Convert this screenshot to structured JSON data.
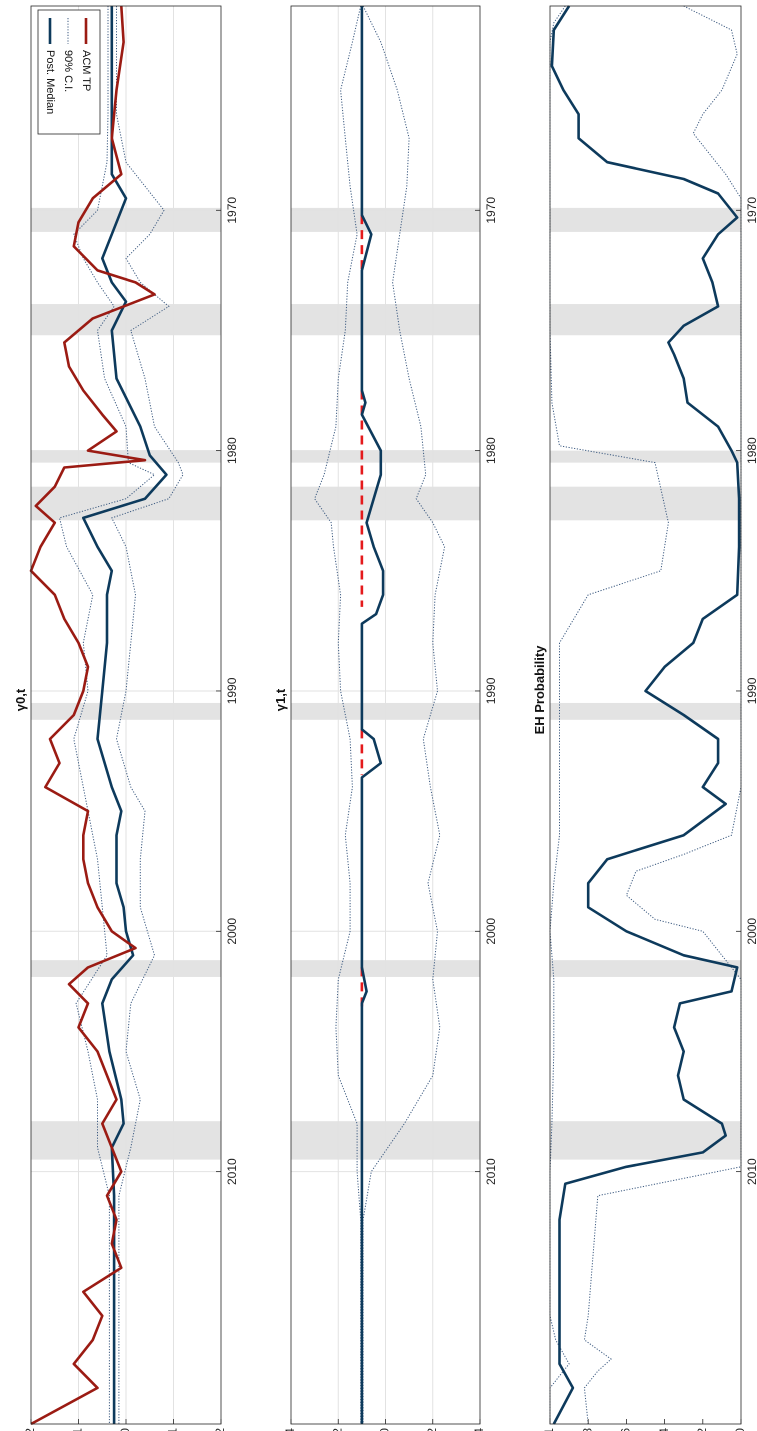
{
  "colors": {
    "median": "#0d3a5c",
    "ci": "#3c5a80",
    "acm": "#9b1b13",
    "red_dash": "#e41a1c",
    "recession": "#e3e3e3",
    "grid": "#e2e2e2",
    "axis": "#262626"
  },
  "chart_data": [
    {
      "type": "line",
      "title": "γ0,t",
      "xlim": [
        1961.5,
        2020.5
      ],
      "ylim": [
        -2,
        2
      ],
      "yticks": [
        "2",
        "1",
        "0",
        "-1",
        "-2"
      ],
      "xticks": [
        "1970",
        "1980",
        "1990",
        "2000",
        "2010"
      ],
      "grid": true,
      "legend": {
        "placement": "top-right",
        "entries": [
          "Post. Median",
          "90% C.I.",
          "ACM TP"
        ]
      },
      "recessions": [
        [
          1969.9,
          1970.9
        ],
        [
          1973.9,
          1975.2
        ],
        [
          1980.0,
          1980.5
        ],
        [
          1981.5,
          1982.9
        ],
        [
          1990.5,
          1991.2
        ],
        [
          2001.2,
          2001.9
        ],
        [
          2007.9,
          2009.5
        ]
      ],
      "series": [
        {
          "name": "Post. Median",
          "x": [
            1961.5,
            1966,
            1968.5,
            1969.5,
            1971,
            1972,
            1973,
            1973.8,
            1975,
            1977,
            1979,
            1980.2,
            1981,
            1982,
            1982.8,
            1984,
            1985,
            1986,
            1988,
            1990,
            1992,
            1994,
            1995,
            1996,
            1998,
            1999,
            2000,
            2001,
            2002,
            2003,
            2005,
            2007,
            2008,
            2009,
            2011,
            2014,
            2020.5
          ],
          "y": [
            0.3,
            0.3,
            0.3,
            0,
            0.3,
            0.5,
            0.3,
            0,
            0.3,
            0.2,
            -0.3,
            -0.5,
            -0.85,
            -0.4,
            0.9,
            0.6,
            0.3,
            0.4,
            0.4,
            0.5,
            0.6,
            0.3,
            0.1,
            0.2,
            0.2,
            0.05,
            0,
            -0.15,
            0.3,
            0.5,
            0.35,
            0.1,
            0.05,
            0.3,
            0.25,
            0.25,
            0.25
          ]
        },
        {
          "name": "90% C.I.",
          "x": [
            1961.5,
            1966,
            1968,
            1970,
            1971,
            1972,
            1973,
            1974,
            1975,
            1977,
            1979,
            1980.5,
            1981,
            1982,
            1982.8,
            1984,
            1986,
            1988,
            1990,
            1992,
            1994,
            1995,
            1997,
            1999,
            2001,
            2003,
            2005,
            2007,
            2009,
            2011,
            2020.5
          ],
          "y": [
            0.38,
            0.38,
            0.4,
            0.6,
            1.1,
            0.9,
            0.6,
            0.25,
            0.6,
            0.45,
            0,
            -0.05,
            -0.6,
            0,
            1.4,
            1.25,
            0.7,
            0.9,
            0.8,
            1.1,
            0.9,
            0.8,
            0.6,
            0.5,
            0.4,
            1.05,
            0.8,
            0.6,
            0.6,
            0.35,
            0.35
          ]
        },
        {
          "name": "90% C.I. (lower)",
          "x": [
            1961.5,
            1966,
            1968,
            1970,
            1971,
            1972,
            1973,
            1974,
            1975,
            1977,
            1979,
            1980.5,
            1981,
            1982,
            1982.8,
            1984,
            1986,
            1988,
            1990,
            1992,
            1994,
            1995,
            1997,
            1999,
            2001,
            2003,
            2005,
            2007,
            2009,
            2011,
            2020.5
          ],
          "y": [
            0.2,
            0.2,
            0,
            -0.8,
            -0.5,
            0,
            -0.3,
            -0.9,
            -0.1,
            -0.4,
            -0.6,
            -1.1,
            -1.2,
            -0.9,
            0.3,
            0,
            -0.2,
            -0.1,
            0,
            0.2,
            -0.1,
            -0.4,
            -0.3,
            -0.3,
            -0.6,
            -0.1,
            0,
            -0.3,
            -0.1,
            0.15,
            0.15
          ]
        },
        {
          "name": "ACM TP",
          "x": [
            1961.5,
            1963,
            1965,
            1967,
            1968.5,
            1969.5,
            1970.5,
            1971.5,
            1972.5,
            1973,
            1973.5,
            1974.5,
            1975.5,
            1976.5,
            1977.5,
            1978.5,
            1979.2,
            1980,
            1980.4,
            1980.7,
            1981.5,
            1982.3,
            1983,
            1984,
            1985,
            1986,
            1987,
            1988,
            1989,
            1990,
            1991,
            1992,
            1993,
            1994,
            1995,
            1996,
            1997,
            1998,
            1999,
            2000,
            2000.7,
            2001.5,
            2002.2,
            2003,
            2004,
            2005,
            2006,
            2007,
            2008,
            2009,
            2010,
            2011,
            2012,
            2013,
            2014,
            2015,
            2016,
            2017,
            2018,
            2019,
            2020.5
          ],
          "y": [
            0.1,
            0.05,
            0.2,
            0.3,
            0.1,
            0.7,
            1.0,
            1.1,
            0.6,
            -0.2,
            -0.6,
            0.7,
            1.3,
            1.2,
            0.9,
            0.5,
            0.2,
            0.8,
            -0.4,
            1.3,
            1.5,
            1.9,
            1.5,
            1.8,
            2.0,
            1.5,
            1.3,
            1.0,
            0.8,
            0.9,
            1.1,
            1.6,
            1.4,
            1.7,
            0.8,
            0.9,
            0.9,
            0.8,
            0.6,
            0.3,
            -0.2,
            0.8,
            1.2,
            0.8,
            1.0,
            0.6,
            0.4,
            0.2,
            0.5,
            0.3,
            0.1,
            0.4,
            0.2,
            0.3,
            0.1,
            0.9,
            0.5,
            0.7,
            1.1,
            0.6,
            2.0
          ]
        }
      ]
    },
    {
      "type": "line",
      "title": "γ1,t",
      "xlim": [
        1961.5,
        2020.5
      ],
      "ylim": [
        -4,
        4
      ],
      "yticks": [
        "4",
        "2",
        "0",
        "-2",
        "-4"
      ],
      "xticks": [
        "1970",
        "1980",
        "1990",
        "2000",
        "2010"
      ],
      "grid": true,
      "recessions": [
        [
          1969.9,
          1970.9
        ],
        [
          1973.9,
          1975.2
        ],
        [
          1980.0,
          1980.5
        ],
        [
          1981.5,
          1982.9
        ],
        [
          1990.5,
          1991.2
        ],
        [
          2001.2,
          2001.9
        ],
        [
          2007.9,
          2009.5
        ]
      ],
      "red_dashes": [
        [
          1970.2,
          1972.5
        ],
        [
          1977.5,
          1986.5
        ],
        [
          1991.6,
          1993.5
        ],
        [
          2001.5,
          2003.2
        ]
      ],
      "series": [
        {
          "name": "Post. Median",
          "x": [
            1961.5,
            1969,
            1970.2,
            1971,
            1972.5,
            1977.5,
            1978,
            1978.5,
            1980,
            1981,
            1982,
            1983,
            1984,
            1985,
            1986,
            1986.8,
            1987.2,
            1991.6,
            1992,
            1993,
            1993.6,
            2001.5,
            2002.5,
            2003,
            2020.5
          ],
          "y": [
            1,
            1,
            1,
            0.6,
            1,
            1,
            0.85,
            1,
            0.2,
            0.2,
            0.5,
            0.8,
            0.5,
            0.1,
            0.1,
            0.4,
            1,
            1,
            0.5,
            0.2,
            1,
            1,
            0.8,
            1,
            1
          ]
        },
        {
          "name": "90% C.I.",
          "x": [
            1961.5,
            1963,
            1965,
            1967,
            1969,
            1971,
            1973,
            1975,
            1977,
            1979,
            1981,
            1982,
            1983,
            1984,
            1986,
            1988,
            1990,
            1992,
            1994,
            1996,
            1998,
            2000,
            2002,
            2004,
            2006,
            2008,
            2010,
            2012,
            2020.5
          ],
          "y": [
            1.05,
            1.4,
            1.9,
            1.7,
            1.5,
            1.2,
            1.6,
            1.7,
            2.0,
            2.1,
            2.6,
            3.0,
            2.3,
            2.2,
            1.9,
            2.0,
            1.9,
            1.5,
            1.4,
            1.7,
            1.5,
            1.5,
            2.0,
            2.1,
            2.0,
            1.2,
            1.2,
            1.05,
            1.05
          ]
        },
        {
          "name": "90% C.I. (lower)",
          "x": [
            1961.5,
            1963,
            1965,
            1967,
            1969,
            1971,
            1973,
            1975,
            1977,
            1979,
            1981,
            1982,
            1983,
            1984,
            1986,
            1988,
            1990,
            1992,
            1994,
            1996,
            1998,
            2000,
            2002,
            2004,
            2006,
            2008,
            2010,
            2012,
            2020.5
          ],
          "y": [
            0.95,
            0.2,
            -0.5,
            -1.0,
            -0.9,
            -0.6,
            -0.3,
            -0.6,
            -1.0,
            -1.5,
            -1.7,
            -1.3,
            -2.0,
            -2.5,
            -2.1,
            -2.0,
            -2.2,
            -1.6,
            -1.9,
            -2.3,
            -1.8,
            -2.2,
            -2.0,
            -2.3,
            -2.0,
            -0.8,
            0.6,
            0.95,
            0.95
          ]
        }
      ]
    },
    {
      "type": "line",
      "title": "EH Probability",
      "xlim": [
        1961.5,
        2020.5
      ],
      "ylim": [
        0,
        1
      ],
      "yticks": [
        "1",
        "0.8",
        "0.6",
        "0.4",
        "0.2",
        "0"
      ],
      "xticks": [
        "1970",
        "1980",
        "1990",
        "2000",
        "2010"
      ],
      "grid": false,
      "recessions": [
        [
          1969.9,
          1970.9
        ],
        [
          1973.9,
          1975.2
        ],
        [
          1980.0,
          1980.5
        ],
        [
          1981.5,
          1982.9
        ],
        [
          1990.5,
          1991.2
        ],
        [
          2001.2,
          2001.9
        ],
        [
          2007.9,
          2009.5
        ]
      ],
      "series": [
        {
          "name": "Post. Median",
          "x": [
            1961.5,
            1962.5,
            1964,
            1965,
            1966,
            1967,
            1968,
            1968.7,
            1969.3,
            1970.3,
            1971,
            1972,
            1973,
            1974,
            1974.8,
            1975.5,
            1976,
            1977,
            1978,
            1979,
            1980,
            1980.5,
            1982,
            1984,
            1986,
            1987,
            1988,
            1989,
            1990,
            1991,
            1992,
            1993,
            1994,
            1994.7,
            1996,
            1997,
            1998,
            1999,
            2000,
            2001,
            2001.5,
            2002.5,
            2003,
            2004,
            2005,
            2006,
            2007,
            2008,
            2008.5,
            2009.2,
            2009.8,
            2010.5,
            2012,
            2016,
            2018,
            2019,
            2020.5
          ],
          "y": [
            0.9,
            0.98,
            0.99,
            0.93,
            0.85,
            0.85,
            0.7,
            0.3,
            0.12,
            0.02,
            0.12,
            0.2,
            0.15,
            0.12,
            0.3,
            0.38,
            0.35,
            0.3,
            0.28,
            0.12,
            0.05,
            0.02,
            0.01,
            0.01,
            0.02,
            0.2,
            0.25,
            0.4,
            0.5,
            0.3,
            0.12,
            0.12,
            0.2,
            0.08,
            0.3,
            0.7,
            0.8,
            0.8,
            0.6,
            0.3,
            0.02,
            0.05,
            0.32,
            0.35,
            0.3,
            0.33,
            0.3,
            0.1,
            0.08,
            0.2,
            0.6,
            0.92,
            0.95,
            0.95,
            0.95,
            0.88,
            0.98
          ]
        },
        {
          "name": "90% C.I.",
          "x": [
            1961.5,
            1962.2,
            1963,
            1968,
            1970,
            1975,
            1978,
            1979.8,
            1980.5,
            1983,
            1985,
            1986,
            1988,
            1996,
            1998,
            2000,
            2002,
            2005,
            2008,
            2010,
            2012,
            2016,
            2017,
            2018,
            2019,
            2020.5
          ],
          "y": [
            0.92,
            0.98,
            1,
            1,
            1,
            1,
            0.99,
            0.95,
            0.45,
            0.38,
            0.42,
            0.8,
            0.95,
            0.95,
            0.98,
            1,
            0.98,
            0.98,
            0.99,
            1,
            1,
            1,
            0.97,
            0.9,
            1,
            1
          ]
        },
        {
          "name": "90% C.I. (lower)",
          "x": [
            1961.5,
            1962.5,
            1963.5,
            1965,
            1966,
            1966.8,
            1967.5,
            1968.5,
            1969.5,
            1985,
            1994,
            1996,
            1996.8,
            1997.5,
            1998.5,
            1999.5,
            2000,
            2002,
            2009.8,
            2011,
            2016,
            2017,
            2017.8,
            2018.3,
            2019,
            2020.5
          ],
          "y": [
            0.3,
            0.05,
            0.02,
            0.1,
            0.2,
            0.25,
            0.18,
            0.08,
            0,
            0,
            0,
            0.05,
            0.3,
            0.55,
            0.6,
            0.45,
            0.2,
            0,
            0,
            0.75,
            0.8,
            0.82,
            0.68,
            0.75,
            0.82,
            0.8
          ]
        }
      ]
    }
  ]
}
